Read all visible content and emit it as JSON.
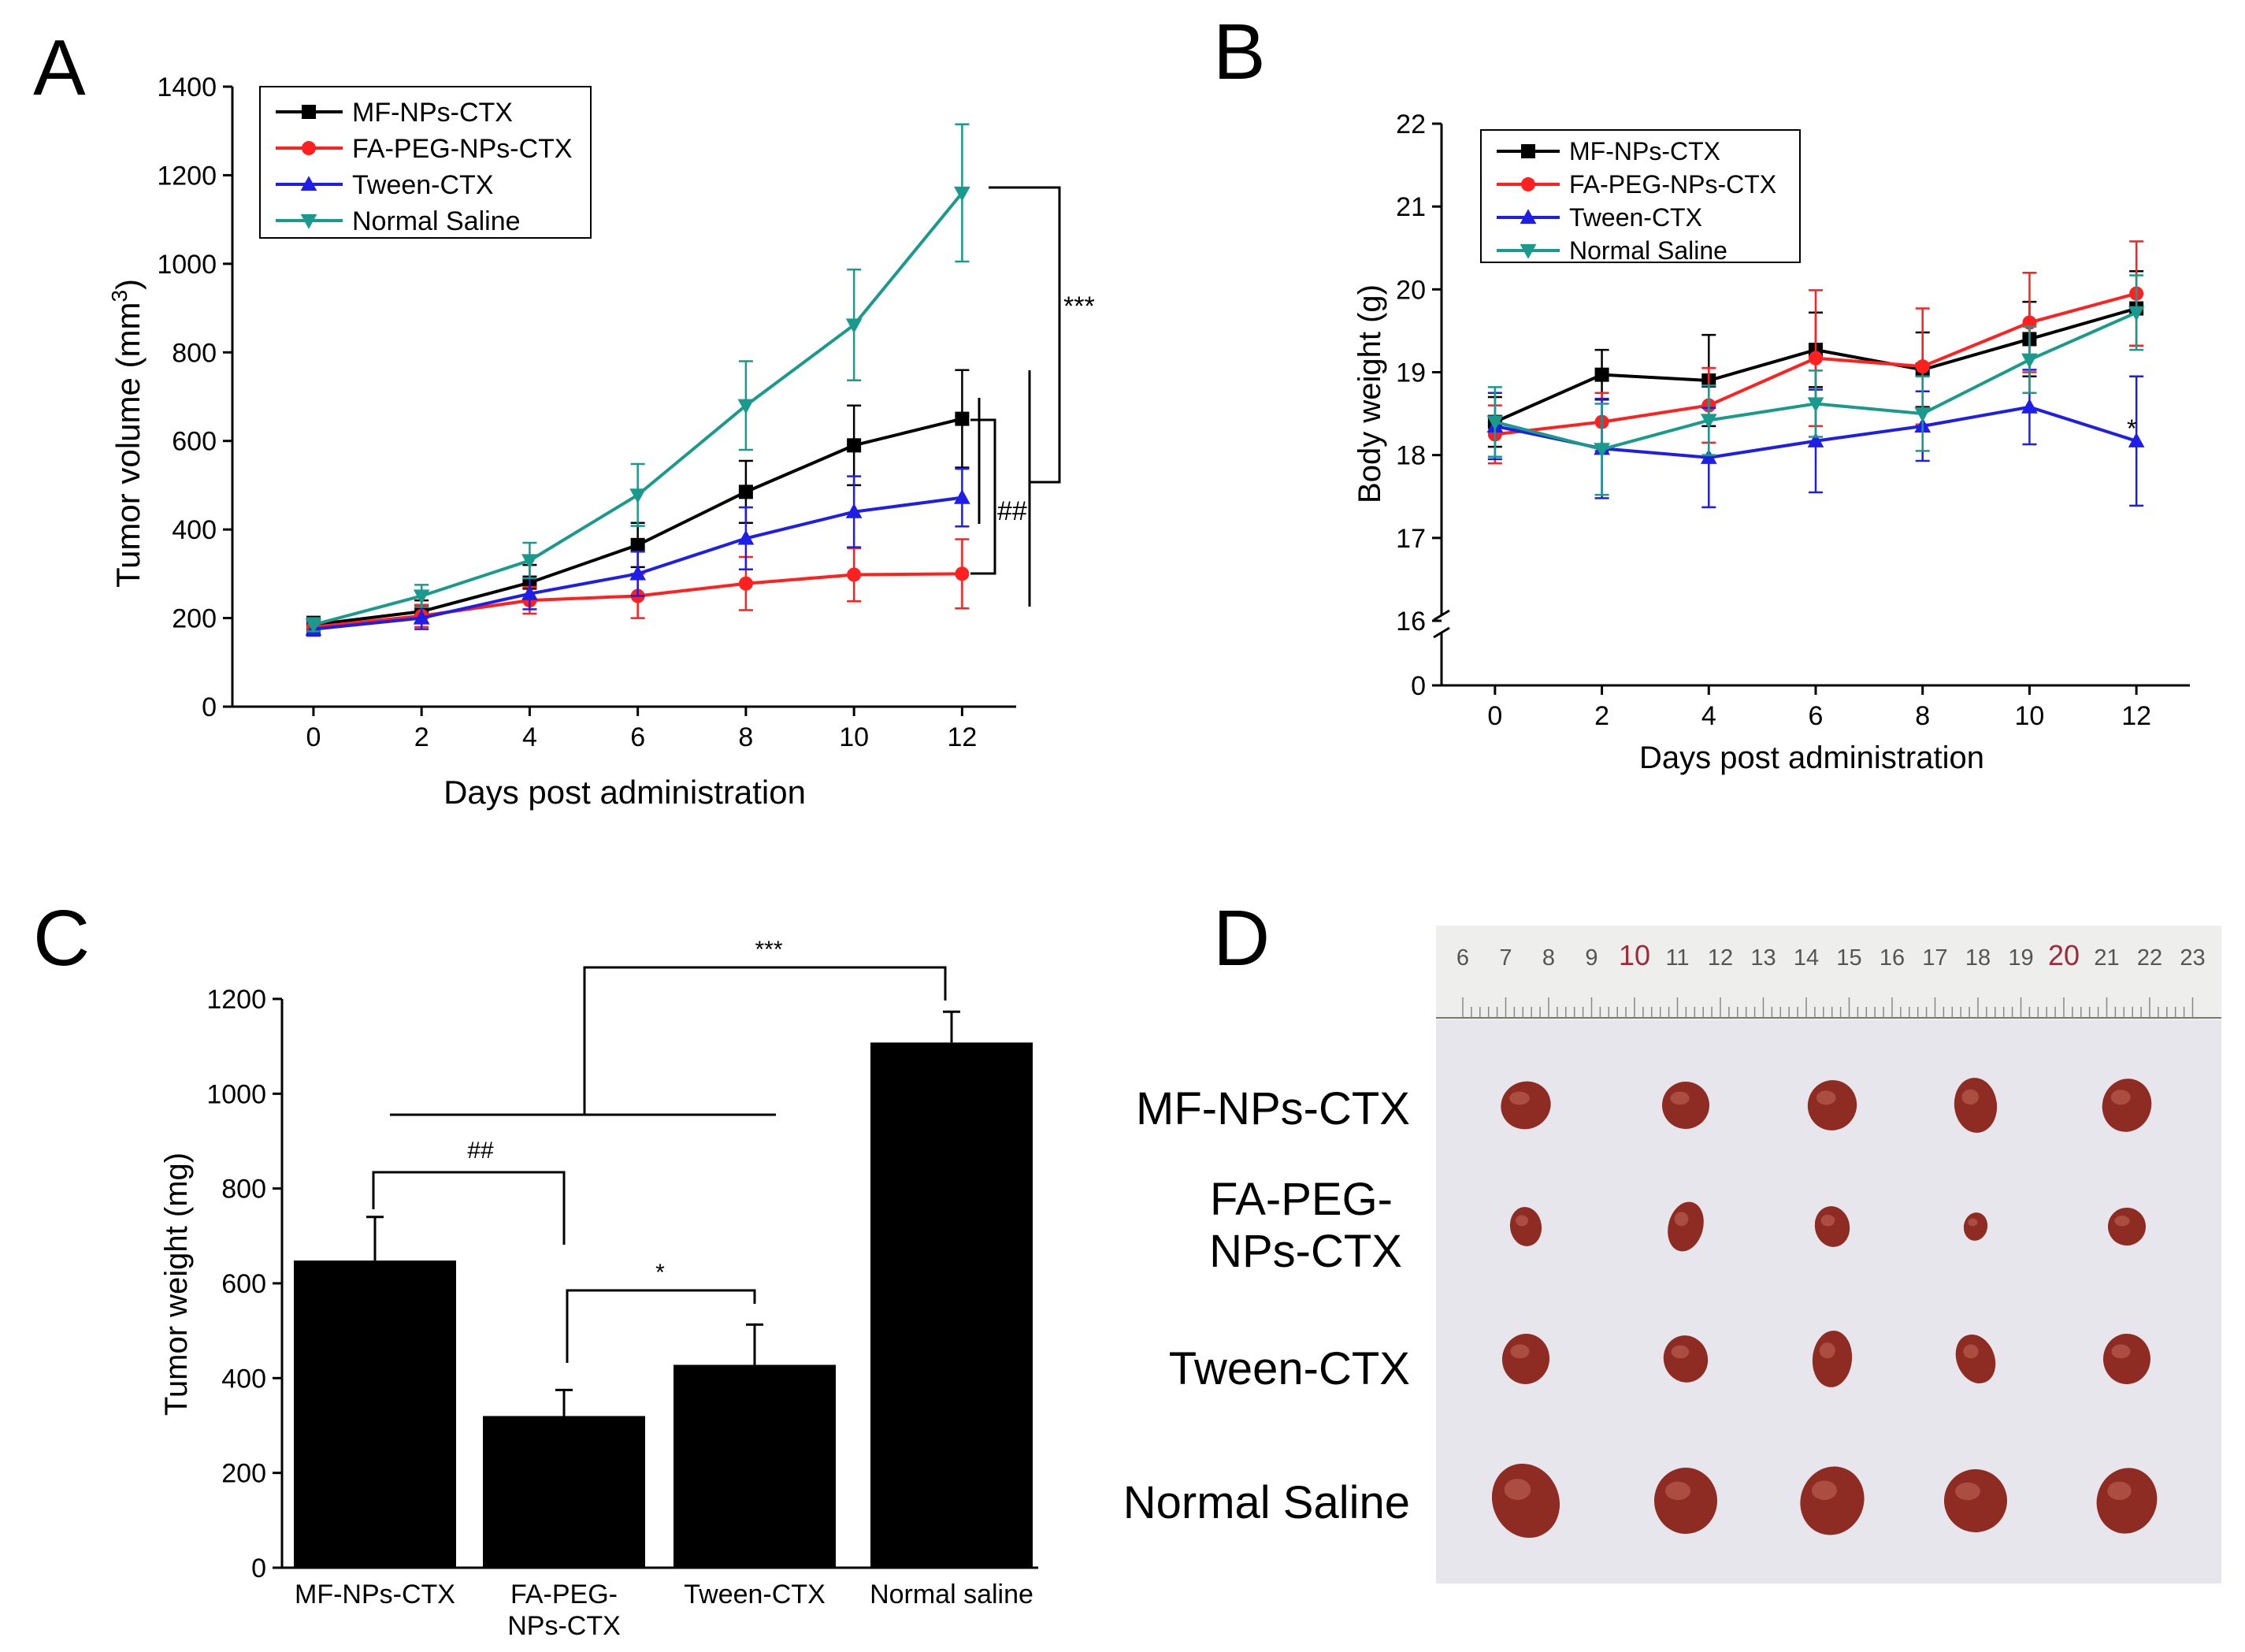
{
  "panels": {
    "a": "A",
    "b": "B",
    "c": "C",
    "d": "D"
  },
  "chart_data": [
    {
      "id": "A",
      "type": "line",
      "xlabel": "Days post administration",
      "ylabel": "Tumor volume (mm",
      "ylabel_sup": "3",
      "ylabel_end": ")",
      "xlim": [
        -1.5,
        13
      ],
      "ylim": [
        0,
        1400
      ],
      "xticks": [
        0,
        2,
        4,
        6,
        8,
        10,
        12
      ],
      "yticks": [
        0,
        200,
        400,
        600,
        800,
        1000,
        1200,
        1400
      ],
      "x": [
        0,
        2,
        4,
        6,
        8,
        10,
        12
      ],
      "series": [
        {
          "name": "MF-NPs-CTX",
          "color": "#000000",
          "marker": "square",
          "values": [
            185,
            215,
            280,
            365,
            485,
            590,
            650
          ],
          "errors": [
            18,
            25,
            40,
            50,
            70,
            90,
            110
          ]
        },
        {
          "name": "FA-PEG-NPs-CTX",
          "color": "#ff2020",
          "marker": "circle",
          "values": [
            180,
            205,
            240,
            250,
            278,
            298,
            300
          ],
          "errors": [
            15,
            25,
            30,
            50,
            60,
            60,
            78
          ]
        },
        {
          "name": "Tween-CTX",
          "color": "#1e1ee6",
          "marker": "triangle-up",
          "values": [
            175,
            200,
            255,
            300,
            380,
            440,
            472
          ],
          "errors": [
            15,
            25,
            35,
            50,
            70,
            80,
            65
          ]
        },
        {
          "name": "Normal Saline",
          "color": "#1a9a8c",
          "marker": "triangle-down",
          "values": [
            185,
            250,
            330,
            478,
            680,
            862,
            1160
          ],
          "errors": [
            15,
            25,
            40,
            70,
            100,
            125,
            155
          ]
        }
      ],
      "significance": [
        {
          "label": "***",
          "between": [
            "MF-NPs-CTX / FA-PEG-NPs-CTX / Tween-CTX",
            "Normal Saline"
          ]
        },
        {
          "label": "##",
          "between": [
            "MF-NPs-CTX",
            "FA-PEG-NPs-CTX"
          ]
        }
      ]
    },
    {
      "id": "B",
      "type": "line",
      "xlabel": "Days post administration",
      "ylabel": "Body weight (g)",
      "xlim": [
        -1,
        13
      ],
      "ylim": [
        16,
        22
      ],
      "axis_break": "between 0 and 16",
      "xticks": [
        0,
        2,
        4,
        6,
        8,
        10,
        12
      ],
      "yticks": [
        0,
        16,
        17,
        18,
        19,
        20,
        21,
        22
      ],
      "x": [
        0,
        2,
        4,
        6,
        8,
        10,
        12
      ],
      "series": [
        {
          "name": "MF-NPs-CTX",
          "color": "#000000",
          "marker": "square",
          "values": [
            18.4,
            18.97,
            18.9,
            19.27,
            19.03,
            19.4,
            19.77
          ],
          "errors": [
            0.3,
            0.3,
            0.55,
            0.45,
            0.45,
            0.45,
            0.45
          ]
        },
        {
          "name": "FA-PEG-NPs-CTX",
          "color": "#ff2020",
          "marker": "circle",
          "values": [
            18.25,
            18.4,
            18.6,
            19.17,
            19.07,
            19.6,
            19.95
          ],
          "errors": [
            0.35,
            0.35,
            0.45,
            0.82,
            0.7,
            0.6,
            0.63
          ]
        },
        {
          "name": "Tween-CTX",
          "color": "#1e1ee6",
          "marker": "triangle-up",
          "values": [
            18.35,
            18.08,
            17.97,
            18.17,
            18.35,
            18.58,
            18.17
          ],
          "errors": [
            0.4,
            0.6,
            0.6,
            0.62,
            0.42,
            0.45,
            0.78
          ]
        },
        {
          "name": "Normal Saline",
          "color": "#1a9a8c",
          "marker": "triangle-down",
          "values": [
            18.4,
            18.07,
            18.42,
            18.62,
            18.5,
            19.15,
            19.72
          ],
          "errors": [
            0.42,
            0.55,
            0.42,
            0.4,
            0.45,
            0.4,
            0.45
          ]
        }
      ],
      "annotations": [
        {
          "text": "*",
          "x": 12,
          "y": 18.3
        }
      ]
    },
    {
      "id": "C",
      "type": "bar",
      "ylabel": "Tumor weight (mg)",
      "ylim": [
        0,
        1200
      ],
      "yticks": [
        0,
        200,
        400,
        600,
        800,
        1000,
        1200
      ],
      "categories": [
        "MF-NPs-CTX",
        "FA-PEG-NPs-CTX",
        "Tween-CTX",
        "Normal saline"
      ],
      "category_lines": [
        [
          "MF-NPs-CTX"
        ],
        [
          "FA-PEG-",
          "NPs-CTX"
        ],
        [
          "Tween-CTX"
        ],
        [
          "Normal saline"
        ]
      ],
      "values": [
        648,
        320,
        428,
        1108
      ],
      "errors": [
        92,
        55,
        85,
        65
      ],
      "bar_color": "#000000",
      "significance": [
        {
          "label": "***",
          "between": [
            "MF-NPs-CTX / FA-PEG-NPs-CTX / Tween-CTX",
            "Normal saline"
          ]
        },
        {
          "label": "##",
          "between": [
            "MF-NPs-CTX",
            "FA-PEG-NPs-CTX"
          ]
        },
        {
          "label": "*",
          "between": [
            "FA-PEG-NPs-CTX",
            "Tween-CTX"
          ]
        }
      ]
    }
  ],
  "photo": {
    "ruler_ticks": [
      "6",
      "7",
      "8",
      "9",
      "10",
      "11",
      "12",
      "13",
      "14",
      "15",
      "16",
      "17",
      "18",
      "19",
      "20",
      "21",
      "22",
      "23"
    ],
    "ruler_red": [
      "10",
      "20"
    ],
    "rows": [
      {
        "lines": [
          "MF-NPs-CTX"
        ]
      },
      {
        "lines": [
          "FA-PEG-",
          "NPs-CTX"
        ]
      },
      {
        "lines": [
          "Tween-CTX"
        ]
      },
      {
        "lines": [
          "Normal Saline"
        ]
      }
    ],
    "tumor_color": "#8e2c24",
    "tumor_highlight": "#c46a5a",
    "background_color": "#e6e6ec"
  }
}
